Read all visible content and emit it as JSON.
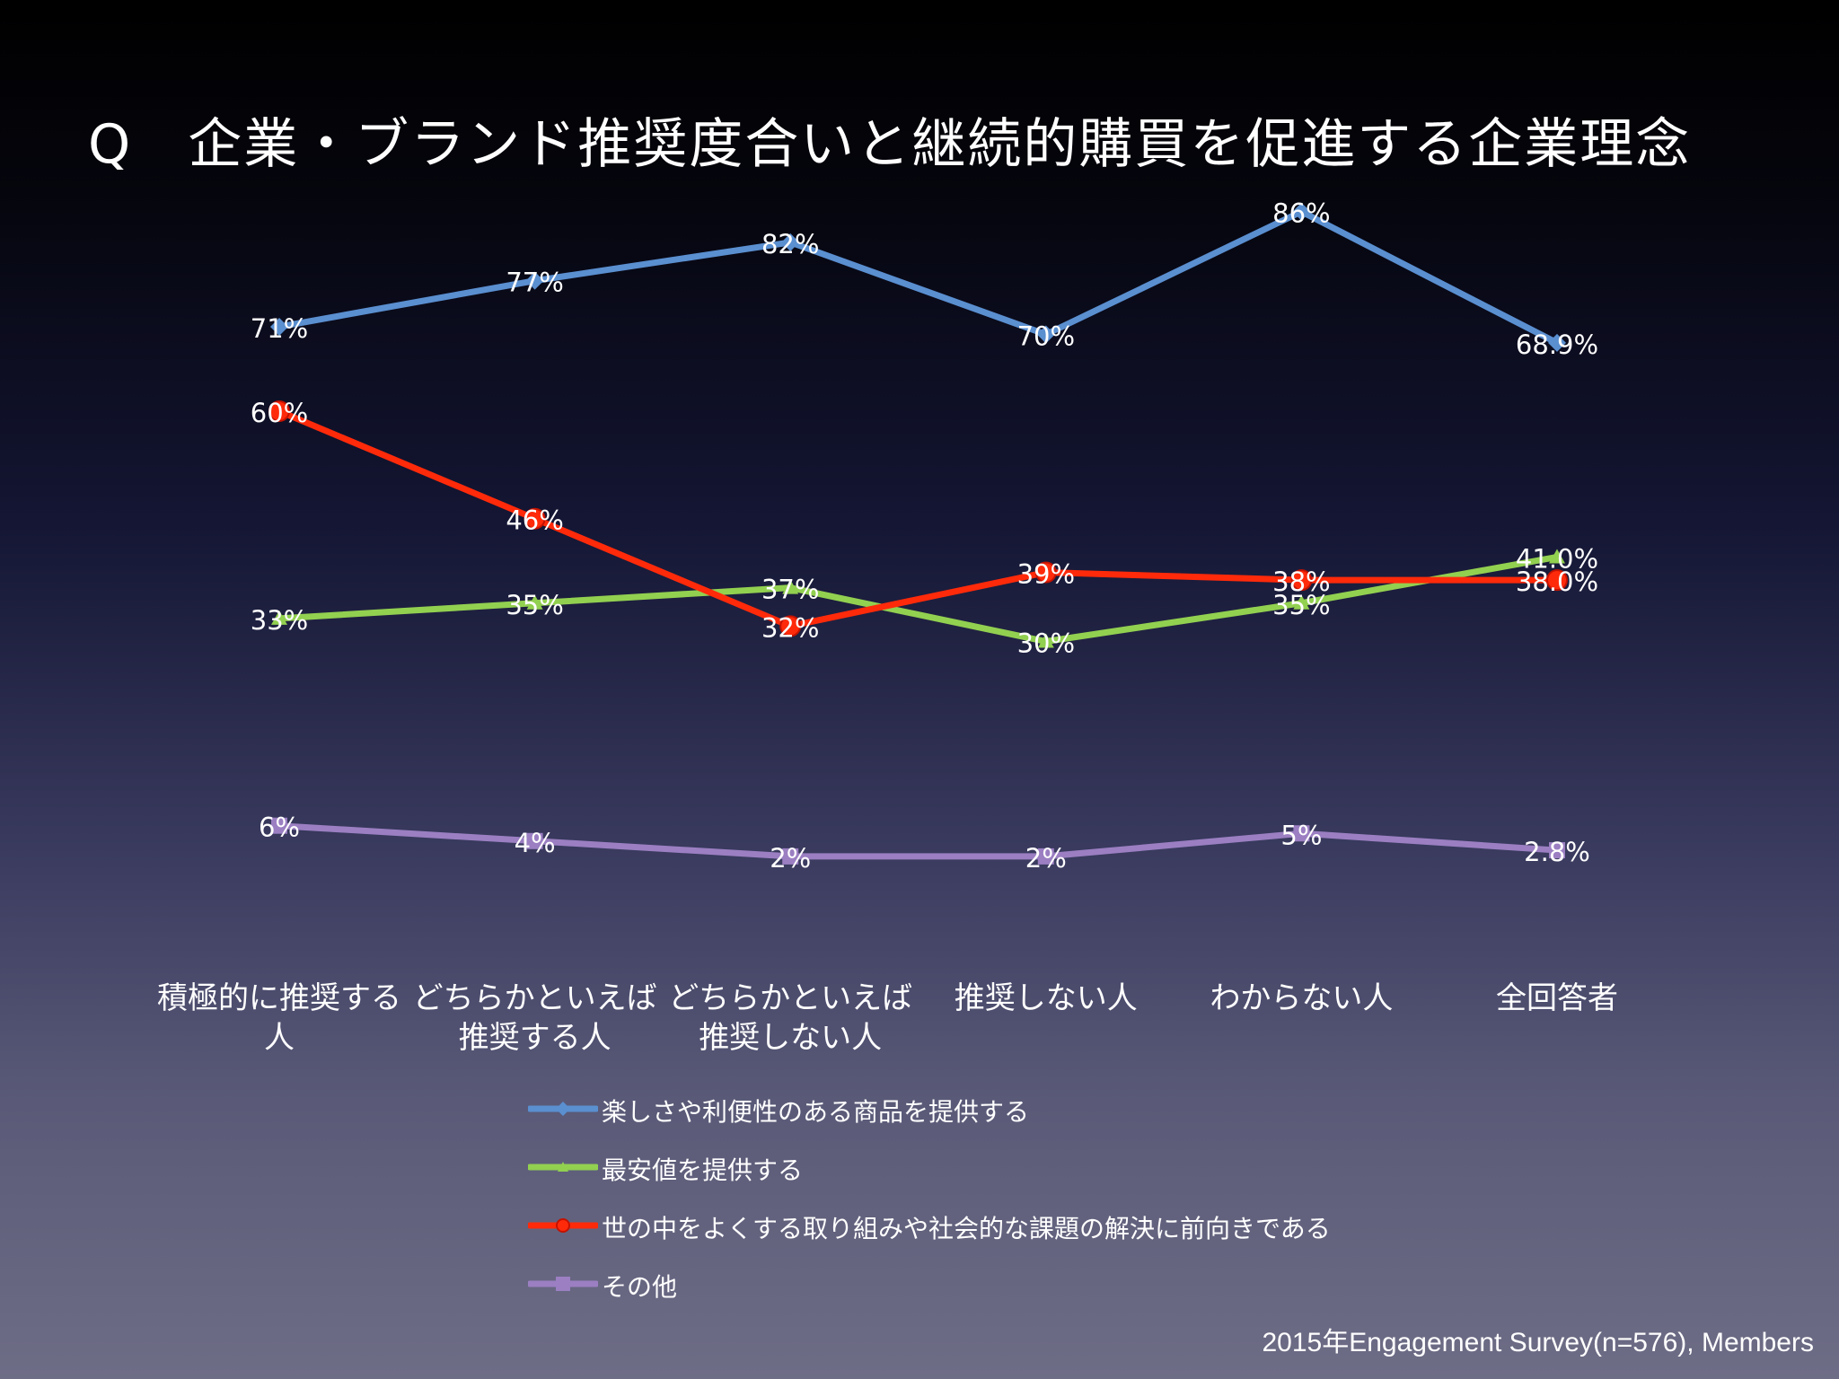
{
  "title": "Q　企業・ブランド推奨度合いと継続的購買を促進する企業理念",
  "source": "2015年Engagement Survey(n=576), Members",
  "chart_data": {
    "type": "line",
    "categories": [
      "積極的に推奨する\n人",
      "どちらかといえば\n推奨する人",
      "どちらかといえば\n推奨しない人",
      "推奨しない人",
      "わからない人",
      "全回答者"
    ],
    "ylim": [
      0,
      100
    ],
    "grid": false,
    "legend_position": "bottom",
    "series": [
      {
        "name": "楽しさや利便性のある商品を提供する",
        "color": "#5a8fd0",
        "marker": "diamond",
        "values": [
          71,
          77,
          82,
          70,
          86,
          68.9
        ],
        "labels": [
          "71%",
          "77%",
          "82%",
          "70%",
          "86%",
          "68.9%"
        ]
      },
      {
        "name": "最安値を提供する",
        "color": "#92d050",
        "marker": "triangle",
        "values": [
          33,
          35,
          37,
          30,
          35,
          41.0
        ],
        "labels": [
          "33%",
          "35%",
          "37%",
          "30%",
          "35%",
          "41.0%"
        ]
      },
      {
        "name": "世の中をよくする取り組みや社会的な課題の解決に前向きである",
        "color": "#ff2a0a",
        "marker": "circle",
        "values": [
          60,
          46,
          32,
          39,
          38,
          38.0
        ],
        "labels": [
          "60%",
          "46%",
          "32%",
          "39%",
          "38%",
          "38.0%"
        ]
      },
      {
        "name": "その他",
        "color": "#9b7fc2",
        "marker": "square",
        "values": [
          6,
          4,
          2,
          2,
          5,
          2.8
        ],
        "labels": [
          "6%",
          "4%",
          "2%",
          "2%",
          "5%",
          "2.8%"
        ]
      }
    ]
  }
}
